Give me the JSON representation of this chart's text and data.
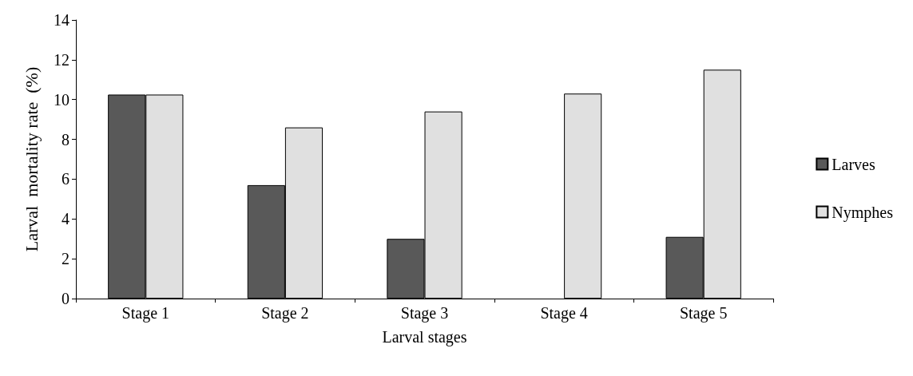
{
  "chart_data": {
    "type": "bar",
    "xlabel": "Larval stages",
    "ylabel": "Larval  mortality rate  (%)",
    "categories": [
      "Stage 1",
      "Stage 2",
      "Stage 3",
      "Stage 4",
      "Stage 5"
    ],
    "series": [
      {
        "name": "Larves",
        "color": "#595959",
        "values": [
          10.25,
          5.7,
          3.0,
          0,
          3.1
        ]
      },
      {
        "name": "Nymphes",
        "color": "#e0e0e0",
        "values": [
          10.25,
          8.6,
          9.4,
          10.3,
          11.5
        ]
      }
    ],
    "ylim": [
      0,
      14
    ],
    "yticks": [
      0,
      2,
      4,
      6,
      8,
      10,
      12,
      14
    ],
    "grid": false,
    "legend": "right"
  }
}
